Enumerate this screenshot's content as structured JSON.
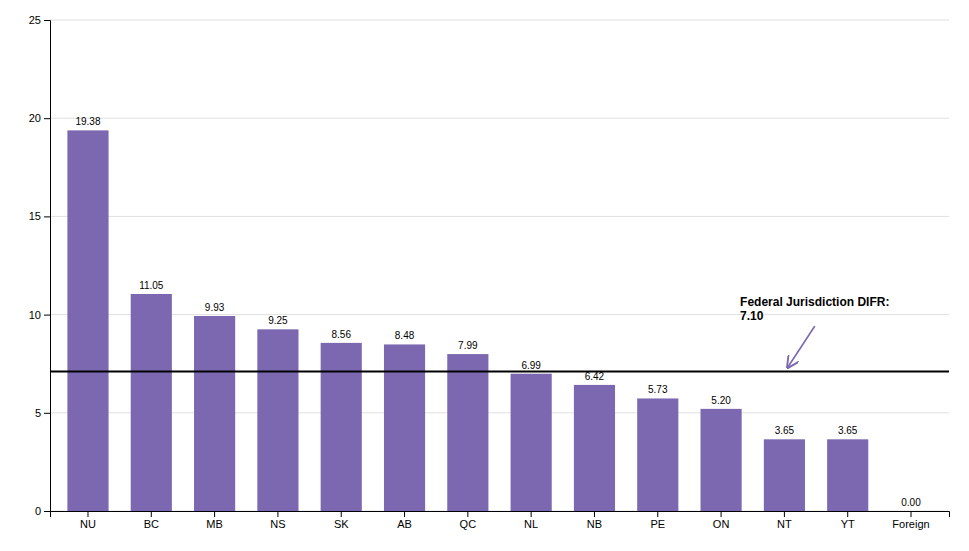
{
  "chart_data": {
    "type": "bar",
    "categories": [
      "NU",
      "BC",
      "MB",
      "NS",
      "SK",
      "AB",
      "QC",
      "NL",
      "NB",
      "PE",
      "ON",
      "NT",
      "YT",
      "Foreign"
    ],
    "values": [
      19.38,
      11.05,
      9.93,
      9.25,
      8.56,
      8.48,
      7.99,
      6.99,
      6.42,
      5.73,
      5.2,
      3.65,
      3.65,
      0.0
    ],
    "value_labels": [
      "19.38",
      "11.05",
      "9.93",
      "9.25",
      "8.56",
      "8.48",
      "7.99",
      "6.99",
      "6.42",
      "5.73",
      "5.20",
      "3.65",
      "3.65",
      "0.00"
    ],
    "data_labels": true,
    "color": "#7B68B0",
    "ylim": [
      0,
      25
    ],
    "yticks": [
      0,
      5,
      10,
      15,
      20,
      25
    ],
    "grid": true,
    "reference_line": 7.1,
    "annotations": [
      {
        "text": "Federal Jurisdiction DIFR:\n7.10",
        "x": 10.3,
        "y": 10.9,
        "arrow_x": 11.05,
        "arrow_y": 7.3
      }
    ]
  }
}
